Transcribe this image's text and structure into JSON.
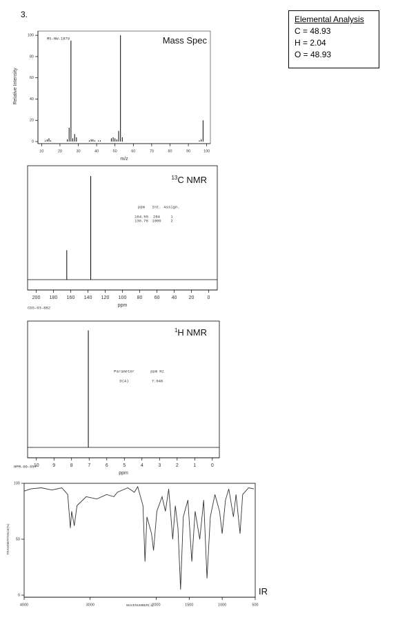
{
  "problem_number": "3.",
  "elemental_analysis": {
    "title": "Elemental Analysis",
    "lines": [
      "C = 48.93",
      "H = 2.04",
      "O = 48.93"
    ]
  },
  "chart_data": [
    {
      "type": "stem",
      "title": "Mass Spec",
      "code": "MS-NW-1879",
      "xlabel": "m/z",
      "ylabel": "Relative Intensity",
      "color": "#000000",
      "x": [
        12,
        13,
        14,
        15,
        24,
        25,
        26,
        27,
        28,
        29,
        36,
        37,
        38,
        39,
        41,
        42,
        48,
        49,
        50,
        51,
        52,
        53,
        54,
        96,
        97,
        98
      ],
      "values": [
        1,
        2,
        3,
        1,
        2,
        13,
        95,
        3,
        7,
        4,
        1,
        2,
        2,
        1,
        1,
        1,
        3,
        4,
        3,
        2,
        10,
        100,
        4,
        1,
        2,
        20
      ],
      "xlim": [
        8,
        102
      ],
      "xticks": [
        10,
        20,
        30,
        40,
        50,
        60,
        70,
        80,
        90,
        100
      ],
      "ylim": [
        0,
        104
      ],
      "yticks": [
        0,
        20,
        40,
        60,
        80,
        100
      ]
    },
    {
      "type": "stem",
      "title_sup": "13",
      "title": "C NMR",
      "code": "CDS-03-882",
      "xlabel": "ppm",
      "color": "#000000",
      "x": [
        164.55,
        136.76
      ],
      "values": [
        284,
        1000
      ],
      "xlim": [
        210,
        -10
      ],
      "xticks": [
        200,
        180,
        160,
        140,
        120,
        100,
        80,
        60,
        40,
        20,
        0
      ],
      "ylim": [
        0,
        1100
      ],
      "table": {
        "header": [
          "ppm",
          "Int.",
          "Assign."
        ],
        "rows": [
          [
            "164.55",
            "284",
            "1"
          ],
          [
            "136.76",
            "1000",
            "2"
          ]
        ]
      }
    },
    {
      "type": "stem",
      "title_sup": "1",
      "title": "H NMR",
      "code": "HPM-00-057",
      "xlabel": "ppm",
      "color": "#000000",
      "x": [
        7.048
      ],
      "values": [
        100
      ],
      "xlim": [
        10.5,
        -0.4
      ],
      "xticks": [
        10,
        9,
        8,
        7,
        6,
        5,
        4,
        3,
        2,
        1,
        0
      ],
      "ylim": [
        0,
        108
      ],
      "table": {
        "header": [
          "Parameter",
          "ppm Hz"
        ],
        "rows": [
          [
            "D(A)",
            "7.048"
          ]
        ]
      }
    },
    {
      "type": "line",
      "title": "IR",
      "xlabel": "WAVENUMBER(-1)",
      "ylabel": "TRANSMITTANCE(%)",
      "color": "#333333",
      "x": [
        4000,
        3900,
        3740,
        3580,
        3430,
        3340,
        3300,
        3280,
        3240,
        3200,
        3060,
        2900,
        2750,
        2640,
        2590,
        2430,
        2330,
        2280,
        2200,
        2170,
        2140,
        2070,
        2040,
        1990,
        1910,
        1860,
        1810,
        1750,
        1710,
        1670,
        1630,
        1590,
        1520,
        1460,
        1410,
        1340,
        1280,
        1230,
        1180,
        1110,
        1040,
        1000,
        950,
        900,
        830,
        790,
        730,
        690,
        600,
        520
      ],
      "values": [
        93,
        95,
        96,
        94,
        96,
        90,
        60,
        75,
        62,
        80,
        88,
        86,
        90,
        88,
        92,
        96,
        92,
        97,
        80,
        30,
        70,
        55,
        40,
        75,
        88,
        75,
        95,
        50,
        80,
        60,
        5,
        70,
        85,
        30,
        75,
        50,
        85,
        15,
        70,
        90,
        75,
        55,
        85,
        95,
        70,
        90,
        55,
        90,
        96,
        95
      ],
      "xlim": [
        4000,
        500
      ],
      "xticks": [
        4000,
        3000,
        2000,
        1500,
        1000,
        500
      ],
      "ylim": [
        0,
        100
      ],
      "yticks": [
        0,
        50,
        100
      ]
    }
  ]
}
